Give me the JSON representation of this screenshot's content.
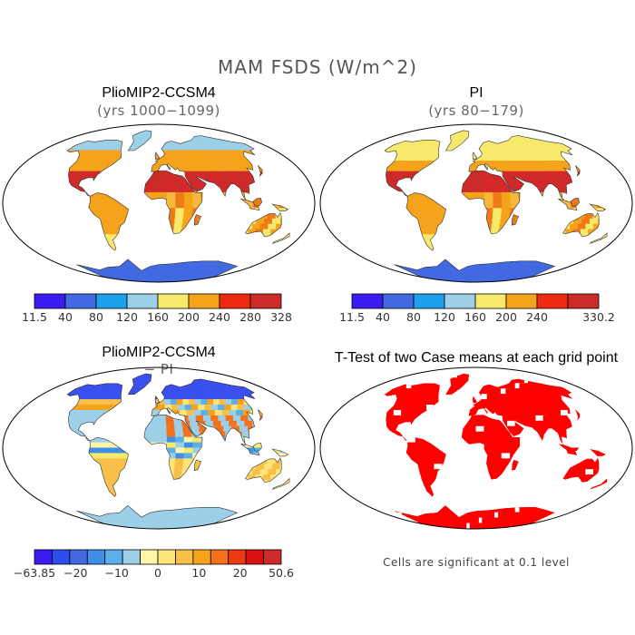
{
  "figure": {
    "title": "MAM FSDS (W/m^2)"
  },
  "panels": [
    {
      "id": "pliomip",
      "title": "PlioMIP2-CCSM4",
      "subtitle": "(yrs 1000−1099)",
      "colorbar": {
        "colors": [
          "#3a1cf0",
          "#4169e1",
          "#1ea0ec",
          "#9ccfe8",
          "#f6e96b",
          "#f6a31c",
          "#ee2a10",
          "#cd2a2a"
        ],
        "labels": [
          "11.5",
          "40",
          "80",
          "120",
          "160",
          "200",
          "240",
          "280",
          "328"
        ]
      }
    },
    {
      "id": "pi",
      "title": "PI",
      "subtitle": "(yrs 80−179)",
      "colorbar": {
        "colors": [
          "#3a1cf0",
          "#4169e1",
          "#1ea0ec",
          "#9ccfe8",
          "#f6e96b",
          "#f6a31c",
          "#ee2a10",
          "#cd2a2a"
        ],
        "labels": [
          "11.5",
          "40",
          "80",
          "120",
          "160",
          "200",
          "240",
          "",
          "330.2"
        ]
      }
    },
    {
      "id": "diff",
      "title": "PlioMIP2-CCSM4",
      "subtitle": "− PI",
      "colorbar": {
        "colors": [
          "#3a1cf0",
          "#2d4ee8",
          "#4169e1",
          "#3d8fe8",
          "#5cb0ea",
          "#9ccfe8",
          "#fff6a8",
          "#fde57a",
          "#f8c04a",
          "#f6a31c",
          "#f3711a",
          "#ee3a12",
          "#d91010",
          "#cd2a2a"
        ],
        "labels": [
          "−63.85",
          "−20",
          "−10",
          "0",
          "10",
          "20",
          "50.6"
        ]
      }
    },
    {
      "id": "ttest",
      "title": "T-Test of two Case means at each grid point",
      "note": "Cells are significant at 0.1 level"
    }
  ]
}
